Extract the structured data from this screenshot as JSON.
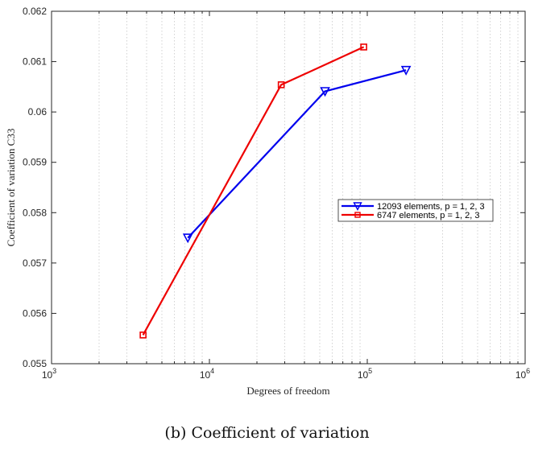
{
  "chart_data": {
    "type": "line",
    "xscale": "log",
    "xlim": [
      1000,
      1000000
    ],
    "ylim": [
      0.055,
      0.062
    ],
    "xlabel": "Degrees of freedom",
    "ylabel": "Coefficient of variation C33",
    "grid": "vertical-minor",
    "legend_position": "right",
    "x_ticks": [
      {
        "value": 1000,
        "base": "10",
        "exp": "3"
      },
      {
        "value": 10000,
        "base": "10",
        "exp": "4"
      },
      {
        "value": 100000,
        "base": "10",
        "exp": "5"
      },
      {
        "value": 1000000,
        "base": "10",
        "exp": "6"
      }
    ],
    "y_ticks": [
      "0.055",
      "0.056",
      "0.057",
      "0.058",
      "0.059",
      "0.06",
      "0.061",
      "0.062"
    ],
    "series": [
      {
        "name": "12093 elements, p = 1, 2, 3",
        "color": "#0000ee",
        "marker": "triangle-down",
        "x": [
          7300,
          54000,
          176000
        ],
        "y": [
          0.0575,
          0.06041,
          0.06083
        ]
      },
      {
        "name": "6747 elements, p = 1, 2, 3",
        "color": "#ee0000",
        "marker": "square",
        "x": [
          3800,
          28500,
          95000
        ],
        "y": [
          0.05557,
          0.06054,
          0.06129
        ]
      }
    ],
    "caption": "(b) Coefficient of variation"
  }
}
